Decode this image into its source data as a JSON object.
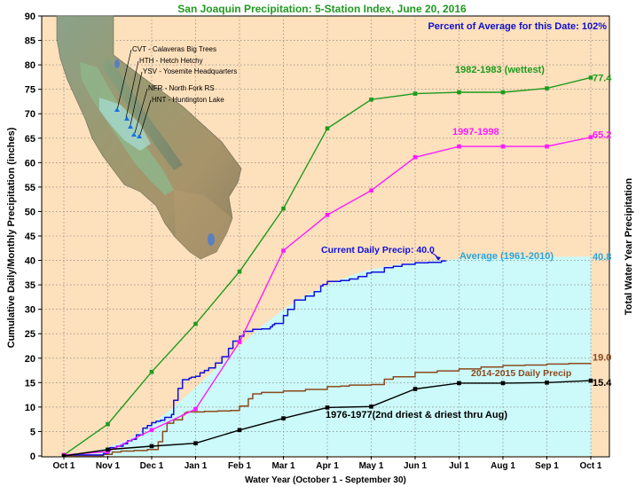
{
  "chart_data": {
    "type": "line",
    "title": "San Joaquin Precipitation: 5-Station Index, June 20, 2016",
    "subtitle": "Percent of Average for this Date: 102%",
    "ylabel": "Cumulative Daily/Monthly Precipitation (inches)",
    "ylabel_right": "Total Water Year Precipitation",
    "xlabel": "Water Year (October 1 - September 30)",
    "ylim": [
      0,
      90
    ],
    "yticks": [
      0,
      5,
      10,
      15,
      20,
      25,
      30,
      35,
      40,
      45,
      50,
      55,
      60,
      65,
      70,
      75,
      80,
      85,
      90
    ],
    "categories": [
      "Oct 1",
      "Nov 1",
      "Dec 1",
      "Jan 1",
      "Feb 1",
      "Mar 1",
      "Apr 1",
      "May 1",
      "Jun 1",
      "Jul 1",
      "Aug 1",
      "Sep 1",
      "Oct 1"
    ],
    "grid": true,
    "colors": {
      "title": "#1f9a1f",
      "subtitle": "#1010cc",
      "plot_bg": "#fde0bc",
      "average_fill": "#ccf9f9",
      "wettest": "#1e9b1e",
      "w1997": "#ff1aff",
      "current": "#1010dd",
      "average_label": "#27a8e0",
      "w2014": "#8b4a1e",
      "driest": "#000000"
    },
    "series": [
      {
        "name": "1982-1983 (wettest)",
        "key": "wettest",
        "style": "markers",
        "x": [
          0,
          1,
          2,
          3,
          4,
          5,
          6,
          7,
          8,
          9,
          10,
          11,
          12
        ],
        "values": [
          0.2,
          6.5,
          17.2,
          27.0,
          37.7,
          50.6,
          67.0,
          72.9,
          74.1,
          74.4,
          74.4,
          75.2,
          77.4
        ],
        "end_label": "77.4"
      },
      {
        "name": "1997-1998",
        "key": "w1997",
        "style": "markers",
        "x": [
          0,
          1,
          2,
          3,
          4,
          5,
          6,
          7,
          8,
          9,
          10,
          11,
          12
        ],
        "values": [
          0.2,
          0.9,
          5.3,
          9.6,
          23.3,
          42.0,
          49.3,
          54.3,
          61.1,
          63.3,
          63.3,
          63.3,
          65.2
        ],
        "end_label": "65.2"
      },
      {
        "name": "1976-1977(2nd driest & driest thru Aug)",
        "key": "driest",
        "style": "markers",
        "x": [
          0,
          1,
          2,
          3,
          4,
          5,
          6,
          7,
          8,
          9,
          10,
          11,
          12
        ],
        "values": [
          0.0,
          1.3,
          2.0,
          2.6,
          5.3,
          7.7,
          9.9,
          10.1,
          13.7,
          14.9,
          14.9,
          15.0,
          15.4
        ],
        "end_label": "15.4"
      },
      {
        "name": "Average (1961-2010)",
        "key": "average",
        "style": "area",
        "x": [
          0,
          0.5,
          1,
          1.5,
          2,
          2.5,
          3,
          3.5,
          4,
          4.5,
          5,
          5.5,
          6,
          6.5,
          7,
          7.5,
          8,
          8.5,
          9,
          10,
          11,
          12
        ],
        "values": [
          0,
          0.5,
          1.7,
          3.5,
          6.5,
          10.0,
          14.0,
          18.2,
          22.5,
          26.5,
          30.0,
          32.8,
          35.0,
          36.8,
          38.2,
          39.0,
          39.6,
          40.0,
          40.3,
          40.5,
          40.7,
          40.8
        ],
        "end_label": "40.8"
      },
      {
        "name": "Current Daily Precip: 40.0",
        "key": "current",
        "style": "step",
        "x": [
          0,
          0.9,
          1.0,
          1.05,
          1.2,
          1.35,
          1.45,
          1.55,
          1.65,
          1.8,
          1.9,
          2.0,
          2.1,
          2.2,
          2.3,
          2.45,
          2.5,
          2.6,
          2.7,
          2.85,
          2.9,
          3.0,
          3.1,
          3.2,
          3.3,
          3.45,
          3.6,
          3.75,
          3.85,
          4.0,
          4.1,
          4.3,
          4.5,
          4.7,
          4.75,
          4.8,
          5.0,
          5.1,
          5.25,
          5.5,
          5.7,
          5.85,
          5.9,
          6.0,
          6.3,
          6.5,
          6.7,
          6.9,
          7.0,
          7.3,
          7.5,
          7.7,
          8.0,
          8.3,
          8.6,
          8.7
        ],
        "values": [
          0.2,
          0.5,
          1.0,
          1.7,
          2.0,
          2.5,
          3.1,
          3.4,
          4.3,
          5.7,
          6.2,
          6.8,
          7.1,
          7.3,
          7.9,
          8.5,
          11.4,
          13.8,
          15.6,
          15.9,
          16.1,
          16.3,
          17.0,
          17.5,
          18.0,
          19.0,
          20.3,
          22.0,
          23.5,
          24.5,
          25.5,
          25.9,
          26.0,
          26.4,
          26.8,
          27.1,
          28.7,
          30.0,
          31.9,
          32.7,
          33.6,
          34.8,
          35.1,
          35.7,
          35.9,
          36.2,
          36.7,
          37.4,
          37.6,
          38.5,
          38.8,
          39.2,
          39.5,
          39.6,
          39.9,
          40.0
        ]
      },
      {
        "name": "2014-2015 Daily Precip",
        "key": "w2014",
        "style": "step",
        "x": [
          0,
          0.9,
          1.1,
          1.3,
          1.6,
          1.9,
          2.15,
          2.25,
          2.35,
          2.5,
          2.7,
          2.75,
          2.8,
          3.2,
          3.5,
          3.8,
          4.0,
          4.2,
          4.3,
          4.5,
          5.0,
          5.5,
          6.0,
          6.3,
          6.5,
          7.0,
          7.3,
          7.5,
          8.0,
          8.5,
          9.0,
          9.5,
          10.0,
          10.5,
          11.0,
          11.5,
          12.0
        ],
        "values": [
          0,
          0.3,
          0.8,
          1.0,
          1.1,
          1.3,
          2.9,
          5.0,
          6.7,
          7.4,
          8.4,
          8.8,
          9.0,
          9.1,
          9.2,
          9.3,
          10.2,
          11.7,
          12.7,
          13.0,
          13.3,
          13.6,
          14.2,
          14.3,
          14.5,
          14.6,
          15.7,
          16.2,
          17.1,
          17.4,
          17.8,
          18.2,
          18.5,
          18.6,
          18.8,
          18.9,
          19.0
        ],
        "end_label": "19.0"
      }
    ],
    "map_inset": {
      "stations": [
        "CVT - Calaveras Big Trees",
        "HTH - Hetch Hetchy",
        "YSV - Yosemite Headquarters",
        "NFR - North Fork RS",
        "HNT - Huntington Lake"
      ]
    }
  }
}
